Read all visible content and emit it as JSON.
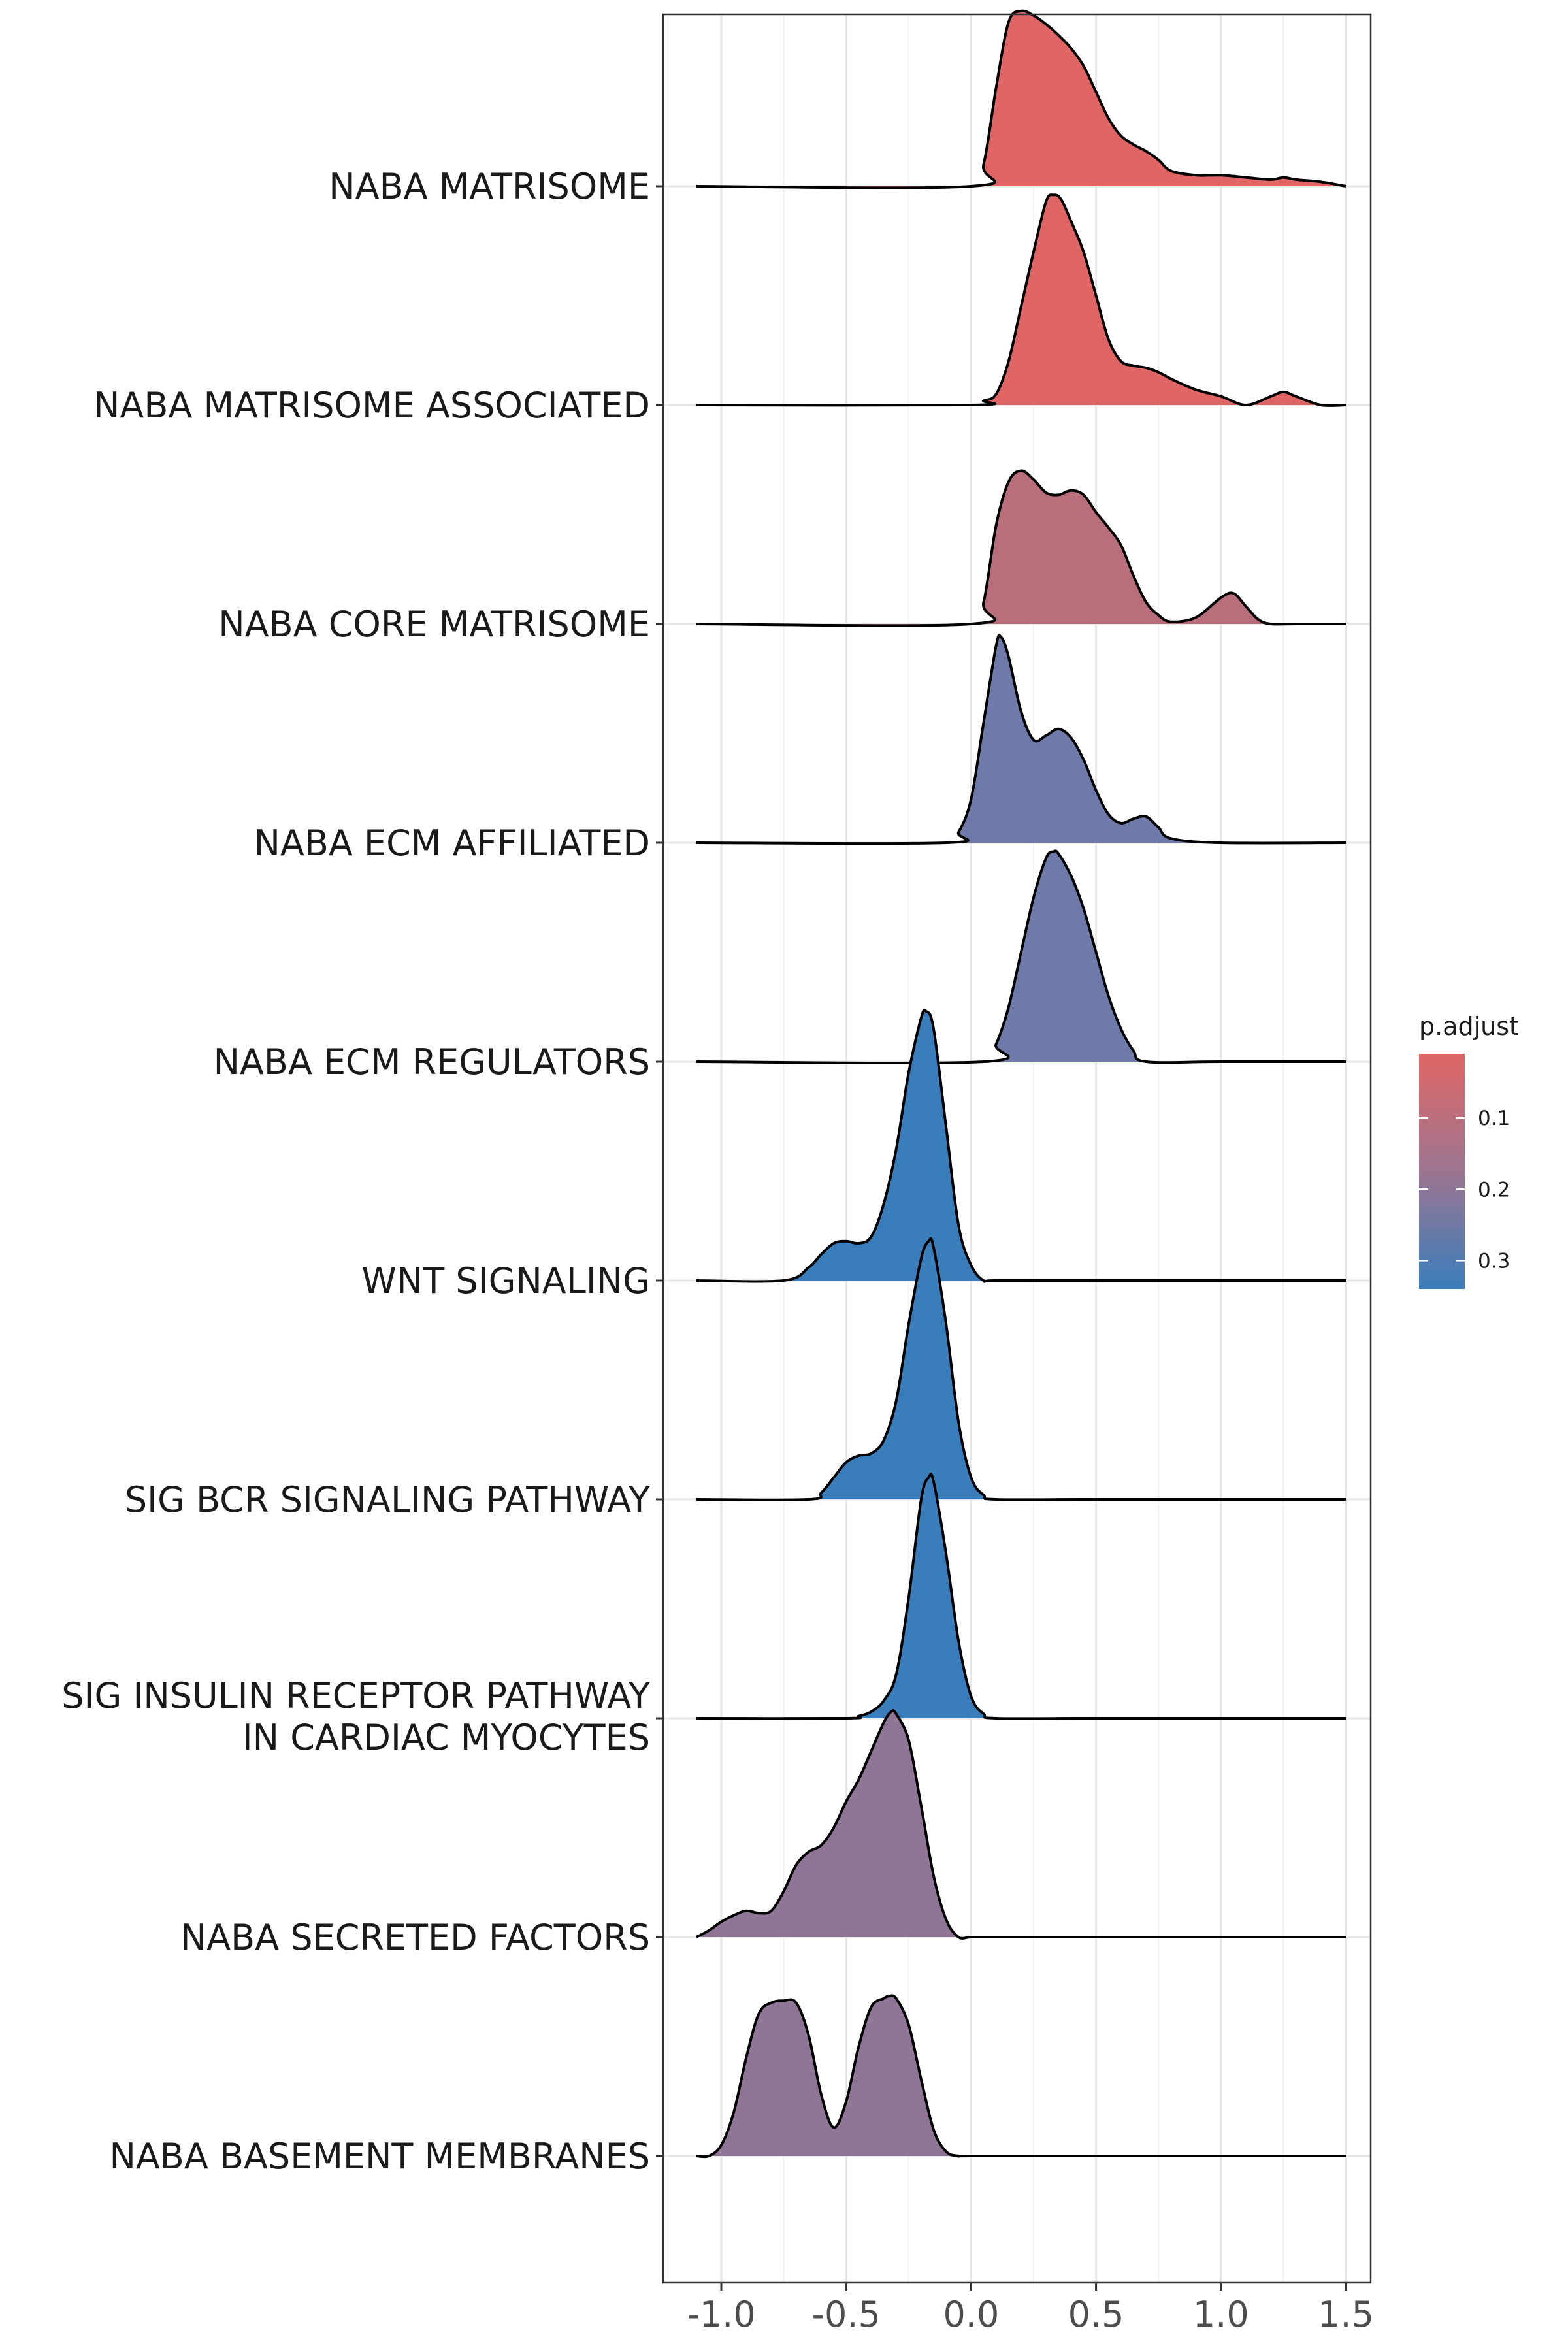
{
  "chart_data": {
    "type": "ridgeline",
    "title": "",
    "xlabel": "",
    "ylabel": "",
    "xlim": [
      -1.2,
      1.6
    ],
    "x_ticks": [
      -1.0,
      -0.5,
      0.0,
      0.5,
      1.0,
      1.5
    ],
    "x_tick_labels": [
      "-1.0",
      "-0.5",
      "0.0",
      "0.5",
      "1.0",
      "1.5"
    ],
    "density_scale_note": "ridge heights in units of row spacing",
    "grid": true,
    "legend": {
      "title": "p.adjust",
      "placement": "right",
      "type": "colorbar",
      "range": [
        0.01,
        0.34
      ],
      "ticks": [
        0.1,
        0.2,
        0.3
      ],
      "tick_labels": [
        "0.1",
        "0.2",
        "0.3"
      ],
      "color_low": "#e06666",
      "color_high": "#3a7dbb"
    },
    "series": [
      {
        "category": "NABA MATRISOME",
        "p_adjust": 0.01,
        "color": "#e06666",
        "x": [
          -1.1,
          0.0,
          0.05,
          0.1,
          0.15,
          0.2,
          0.25,
          0.3,
          0.35,
          0.4,
          0.45,
          0.5,
          0.55,
          0.6,
          0.65,
          0.7,
          0.75,
          0.8,
          0.9,
          1.0,
          1.1,
          1.2,
          1.25,
          1.3,
          1.4,
          1.5
        ],
        "density": [
          0.0,
          0.0,
          0.1,
          0.45,
          0.75,
          0.8,
          0.78,
          0.74,
          0.69,
          0.63,
          0.55,
          0.43,
          0.31,
          0.23,
          0.19,
          0.16,
          0.12,
          0.07,
          0.05,
          0.05,
          0.04,
          0.03,
          0.04,
          0.03,
          0.02,
          0.0
        ]
      },
      {
        "category": "NABA MATRISOME ASSOCIATED",
        "p_adjust": 0.02,
        "color": "#e06666",
        "x": [
          -1.1,
          0.0,
          0.05,
          0.1,
          0.15,
          0.2,
          0.25,
          0.3,
          0.33,
          0.36,
          0.4,
          0.45,
          0.5,
          0.55,
          0.6,
          0.65,
          0.7,
          0.75,
          0.8,
          0.9,
          1.0,
          1.1,
          1.2,
          1.25,
          1.3,
          1.4,
          1.5
        ],
        "density": [
          0.0,
          0.0,
          0.02,
          0.05,
          0.2,
          0.45,
          0.7,
          0.93,
          0.96,
          0.94,
          0.84,
          0.7,
          0.5,
          0.3,
          0.2,
          0.18,
          0.17,
          0.15,
          0.12,
          0.07,
          0.04,
          0.0,
          0.04,
          0.06,
          0.04,
          0.0,
          0.0
        ]
      },
      {
        "category": "NABA CORE MATRISOME",
        "p_adjust": 0.09,
        "color": "#b96e7b",
        "x": [
          -1.1,
          0.0,
          0.05,
          0.1,
          0.15,
          0.2,
          0.25,
          0.3,
          0.35,
          0.4,
          0.45,
          0.5,
          0.55,
          0.6,
          0.65,
          0.7,
          0.75,
          0.8,
          0.9,
          1.0,
          1.05,
          1.1,
          1.15,
          1.2,
          1.3,
          1.5
        ],
        "density": [
          0.0,
          0.0,
          0.1,
          0.45,
          0.65,
          0.7,
          0.66,
          0.6,
          0.59,
          0.61,
          0.59,
          0.51,
          0.44,
          0.36,
          0.22,
          0.1,
          0.04,
          0.01,
          0.03,
          0.12,
          0.14,
          0.08,
          0.02,
          0.0,
          0.0,
          0.0
        ]
      },
      {
        "category": "NABA ECM AFFILIATED",
        "p_adjust": 0.25,
        "color": "#6e7baa",
        "x": [
          -1.1,
          -0.1,
          -0.05,
          0.0,
          0.05,
          0.1,
          0.12,
          0.15,
          0.2,
          0.25,
          0.3,
          0.35,
          0.4,
          0.45,
          0.5,
          0.55,
          0.6,
          0.65,
          0.7,
          0.75,
          0.8,
          1.0,
          1.5
        ],
        "density": [
          0.0,
          0.0,
          0.05,
          0.2,
          0.55,
          0.9,
          0.94,
          0.85,
          0.6,
          0.47,
          0.49,
          0.52,
          0.48,
          0.38,
          0.24,
          0.13,
          0.09,
          0.11,
          0.12,
          0.07,
          0.02,
          0.0,
          0.0
        ]
      },
      {
        "category": "NABA ECM REGULATORS",
        "p_adjust": 0.25,
        "color": "#6e7baa",
        "x": [
          -1.1,
          0.05,
          0.1,
          0.15,
          0.2,
          0.25,
          0.3,
          0.33,
          0.35,
          0.4,
          0.45,
          0.5,
          0.55,
          0.6,
          0.65,
          0.7,
          1.0,
          1.5
        ],
        "density": [
          0.0,
          0.0,
          0.08,
          0.25,
          0.5,
          0.75,
          0.93,
          0.96,
          0.95,
          0.85,
          0.7,
          0.5,
          0.3,
          0.15,
          0.05,
          0.0,
          0.0,
          0.0
        ]
      },
      {
        "category": "WNT SIGNALING",
        "p_adjust": 0.34,
        "color": "#3a7dbb",
        "x": [
          -1.1,
          -0.75,
          -0.65,
          -0.6,
          -0.55,
          -0.5,
          -0.45,
          -0.4,
          -0.35,
          -0.3,
          -0.25,
          -0.2,
          -0.18,
          -0.15,
          -0.1,
          -0.05,
          0.0,
          0.05,
          0.1,
          0.5,
          1.5
        ],
        "density": [
          0.0,
          0.0,
          0.06,
          0.12,
          0.17,
          0.18,
          0.17,
          0.2,
          0.35,
          0.6,
          0.95,
          1.2,
          1.23,
          1.15,
          0.7,
          0.25,
          0.07,
          0.0,
          0.0,
          0.0,
          0.0
        ]
      },
      {
        "category": "SIG BCR SIGNALING PATHWAY",
        "p_adjust": 0.34,
        "color": "#3a7dbb",
        "x": [
          -1.1,
          -0.65,
          -0.6,
          -0.55,
          -0.5,
          -0.45,
          -0.4,
          -0.35,
          -0.3,
          -0.25,
          -0.2,
          -0.17,
          -0.15,
          -0.1,
          -0.05,
          0.0,
          0.05,
          0.1,
          0.5,
          1.5
        ],
        "density": [
          0.0,
          0.0,
          0.03,
          0.1,
          0.17,
          0.2,
          0.21,
          0.27,
          0.45,
          0.8,
          1.1,
          1.18,
          1.15,
          0.8,
          0.35,
          0.1,
          0.02,
          0.0,
          0.0,
          0.0
        ]
      },
      {
        "category": "SIG INSULIN RECEPTOR PATHWAY IN CARDIAC MYOCYTES",
        "p_adjust": 0.34,
        "color": "#3a7dbb",
        "x": [
          -1.1,
          -0.5,
          -0.45,
          -0.4,
          -0.35,
          -0.3,
          -0.25,
          -0.2,
          -0.17,
          -0.15,
          -0.1,
          -0.05,
          0.0,
          0.05,
          0.1,
          0.5,
          1.5
        ],
        "density": [
          0.0,
          0.0,
          0.01,
          0.03,
          0.08,
          0.2,
          0.55,
          1.0,
          1.1,
          1.08,
          0.75,
          0.35,
          0.1,
          0.02,
          0.0,
          0.0,
          0.0
        ]
      },
      {
        "category": "NABA SECRETED FACTORS",
        "p_adjust": 0.22,
        "color": "#8f7697",
        "x": [
          -1.1,
          -1.05,
          -1.0,
          -0.95,
          -0.9,
          -0.85,
          -0.8,
          -0.75,
          -0.7,
          -0.65,
          -0.6,
          -0.55,
          -0.5,
          -0.45,
          -0.4,
          -0.35,
          -0.32,
          -0.3,
          -0.25,
          -0.2,
          -0.15,
          -0.1,
          -0.05,
          0.0,
          0.1,
          0.5,
          1.5
        ],
        "density": [
          0.0,
          0.03,
          0.07,
          0.1,
          0.12,
          0.11,
          0.12,
          0.21,
          0.33,
          0.39,
          0.42,
          0.5,
          0.62,
          0.72,
          0.85,
          0.98,
          1.03,
          1.02,
          0.9,
          0.6,
          0.28,
          0.08,
          0.0,
          0.0,
          0.0,
          0.0,
          0.0
        ]
      },
      {
        "category": "NABA BASEMENT MEMBRANES",
        "p_adjust": 0.21,
        "color": "#8f7697",
        "x": [
          -1.1,
          -1.05,
          -1.0,
          -0.95,
          -0.9,
          -0.85,
          -0.8,
          -0.75,
          -0.7,
          -0.65,
          -0.6,
          -0.55,
          -0.5,
          -0.45,
          -0.4,
          -0.35,
          -0.33,
          -0.3,
          -0.25,
          -0.2,
          -0.15,
          -0.1,
          -0.05,
          0.0,
          0.5,
          1.5
        ],
        "density": [
          0.0,
          0.0,
          0.05,
          0.2,
          0.45,
          0.65,
          0.7,
          0.71,
          0.7,
          0.55,
          0.28,
          0.13,
          0.25,
          0.5,
          0.68,
          0.72,
          0.73,
          0.72,
          0.6,
          0.35,
          0.12,
          0.02,
          0.0,
          0.0,
          0.0,
          0.0
        ]
      }
    ]
  }
}
